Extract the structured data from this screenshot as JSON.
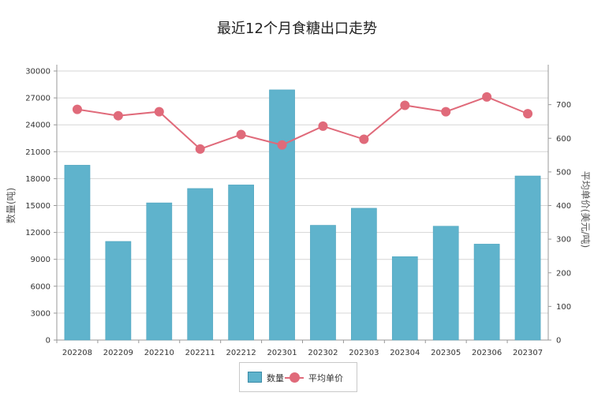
{
  "chart_data": {
    "type": "bar",
    "title": "最近12个月食糖出口走势",
    "categories": [
      "202208",
      "202209",
      "202210",
      "202211",
      "202212",
      "202301",
      "202302",
      "202303",
      "202304",
      "202305",
      "202306",
      "202307"
    ],
    "series": [
      {
        "name": "数量",
        "type": "bar",
        "axis": "left",
        "color": "#5fb3cc",
        "values": [
          19500,
          11000,
          15300,
          16900,
          17300,
          27900,
          12800,
          14700,
          9300,
          12700,
          10700,
          18300
        ]
      },
      {
        "name": "平均单价",
        "type": "line",
        "axis": "right",
        "color": "#e06a7a",
        "values": [
          686,
          667,
          679,
          568,
          611,
          580,
          636,
          597,
          698,
          679,
          723,
          673
        ]
      }
    ],
    "ylabel": "数量(吨)",
    "y2label": "平均单价(美元/吨)",
    "ylim": [
      0,
      30000
    ],
    "y2lim": [
      0,
      800
    ],
    "yticks": [
      "0",
      "3000",
      "6000",
      "9000",
      "12000",
      "15000",
      "18000",
      "21000",
      "24000",
      "27000",
      "30000"
    ],
    "y2ticks": [
      "0",
      "100",
      "200",
      "300",
      "400",
      "500",
      "600",
      "700"
    ],
    "grid": true,
    "legend_position": "bottom-center"
  }
}
